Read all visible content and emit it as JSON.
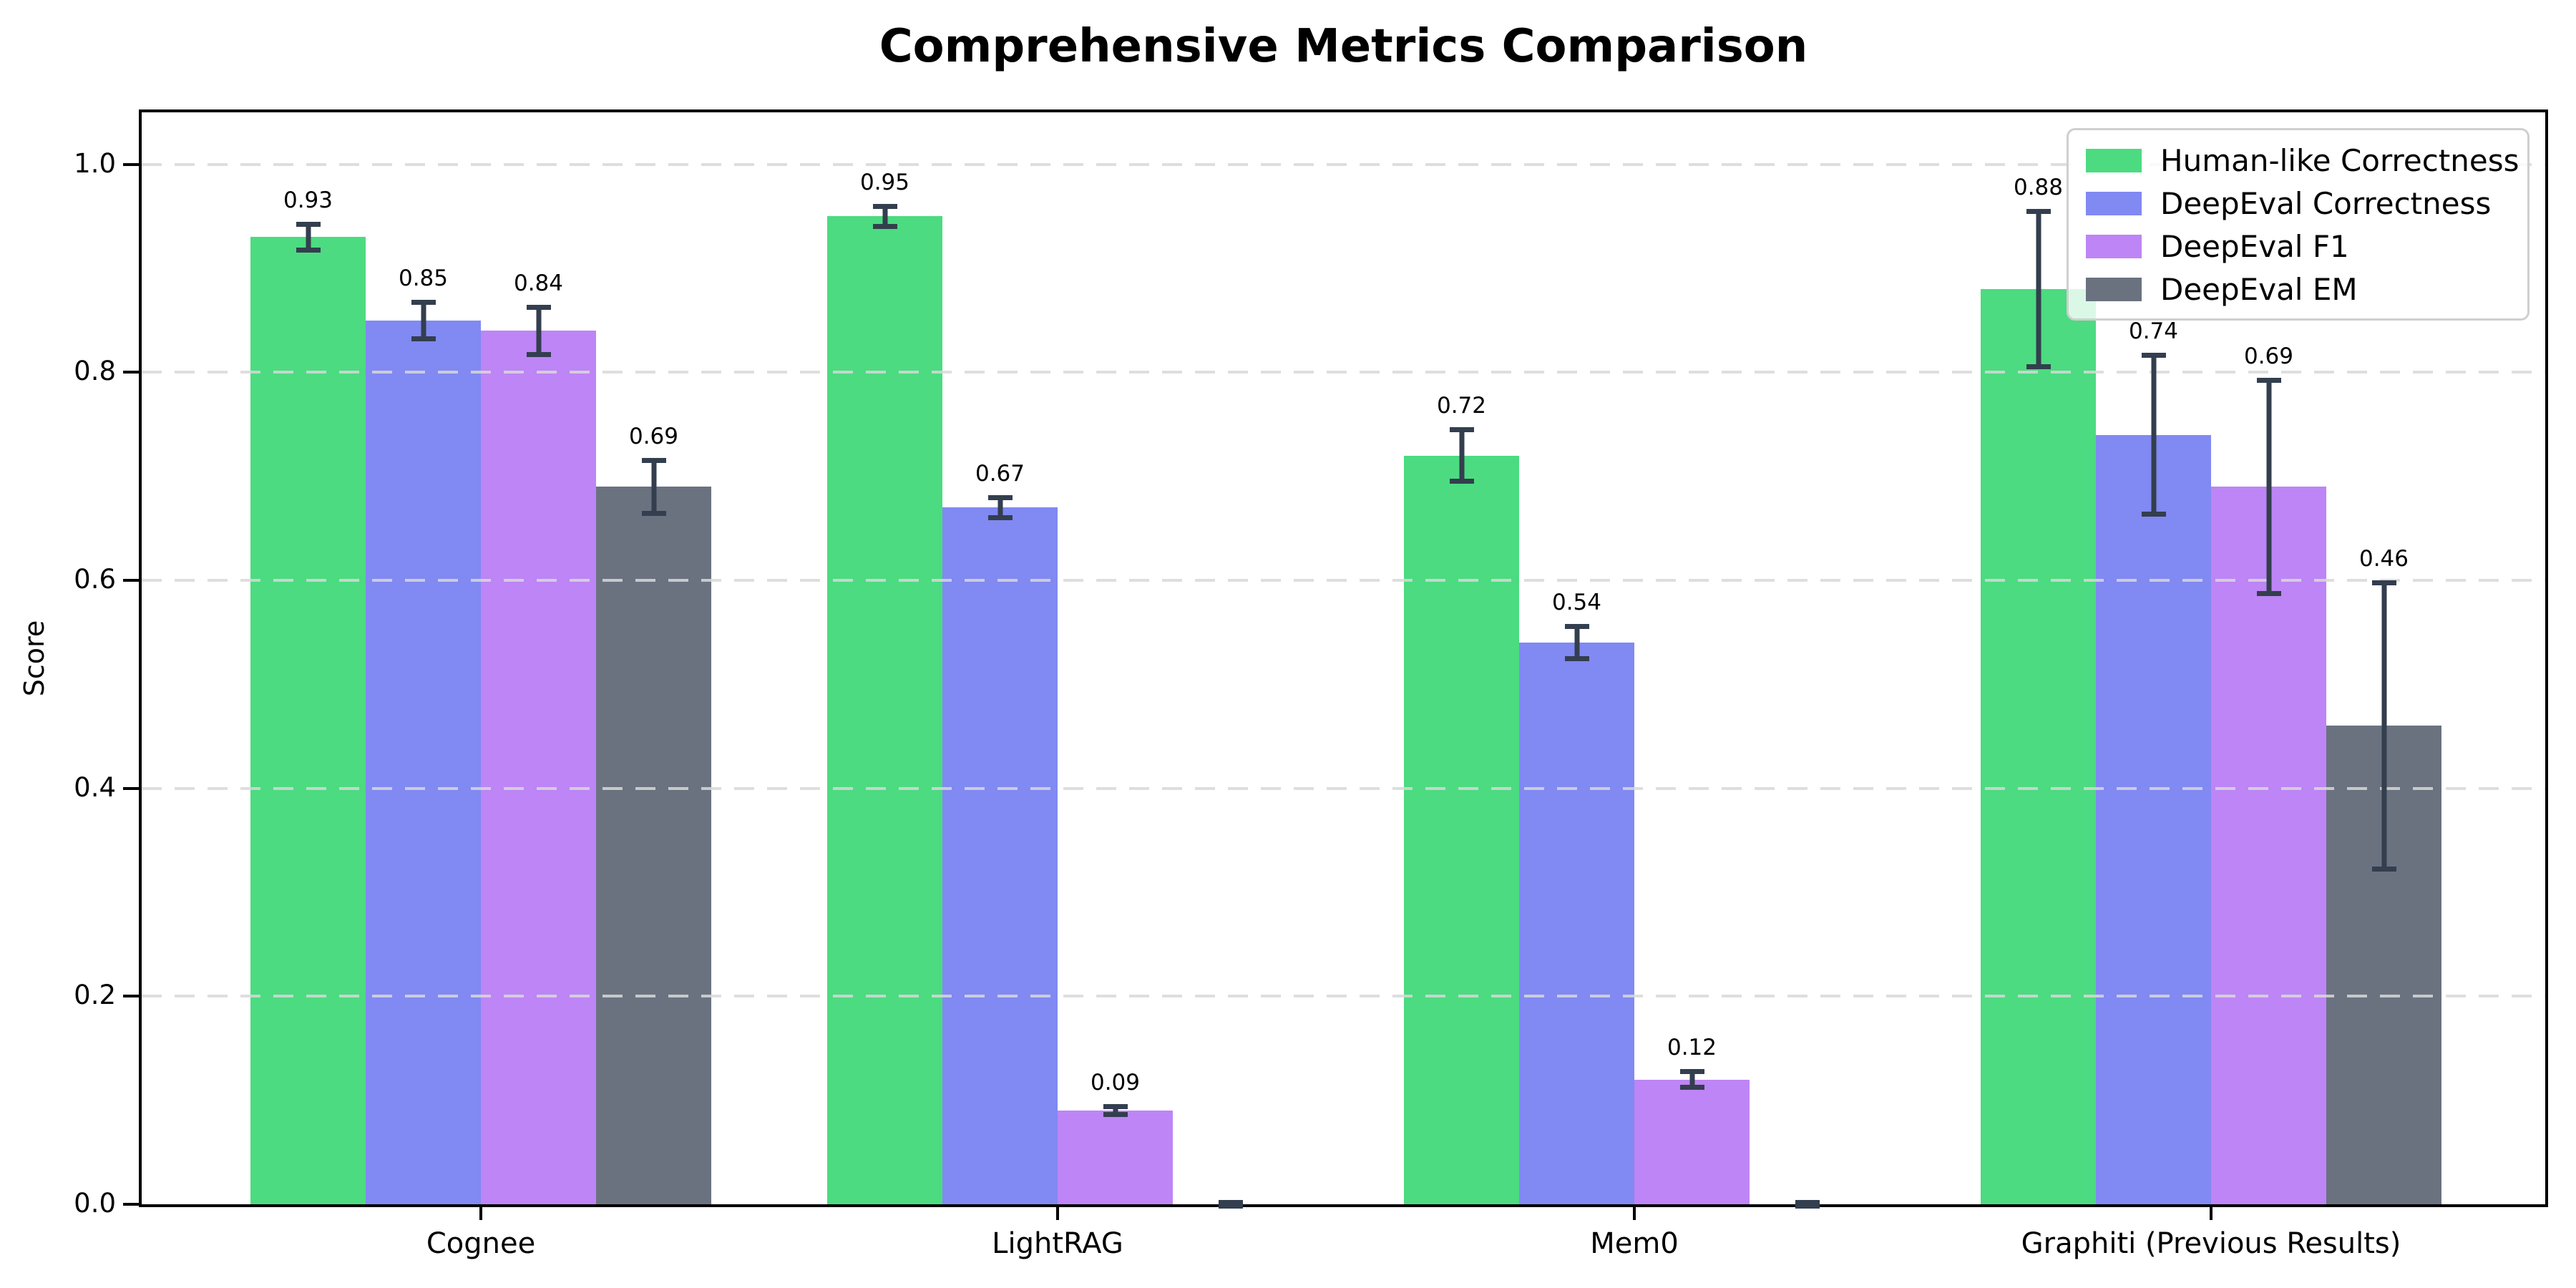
{
  "chart_data": {
    "type": "bar",
    "title": "Comprehensive Metrics Comparison",
    "ylabel": "Score",
    "xlabel": "",
    "categories": [
      "Cognee",
      "LightRAG",
      "Mem0",
      "Graphiti (Previous Results)"
    ],
    "series": [
      {
        "name": "Human-like Correctness",
        "color": "#4cdb80",
        "values": [
          0.93,
          0.95,
          0.72,
          0.88
        ],
        "errors": [
          0.015,
          0.012,
          0.027,
          0.077
        ],
        "labels": [
          "0.93",
          "0.95",
          "0.72",
          "0.88"
        ]
      },
      {
        "name": "DeepEval Correctness",
        "color": "#8189f2",
        "values": [
          0.85,
          0.67,
          0.54,
          0.74
        ],
        "errors": [
          0.02,
          0.012,
          0.018,
          0.079
        ],
        "labels": [
          "0.85",
          "0.67",
          "0.54",
          "0.74"
        ]
      },
      {
        "name": "DeepEval F1",
        "color": "#bd85f5",
        "values": [
          0.84,
          0.09,
          0.12,
          0.69
        ],
        "errors": [
          0.025,
          0.006,
          0.01,
          0.105
        ],
        "labels": [
          "0.84",
          "0.09",
          "0.12",
          "0.69"
        ]
      },
      {
        "name": "DeepEval EM",
        "color": "#6a7280",
        "values": [
          0.69,
          0.0,
          0.0,
          0.46
        ],
        "errors": [
          0.028,
          0.004,
          0.004,
          0.14
        ],
        "labels": [
          "0.69",
          "",
          "",
          "0.46"
        ]
      }
    ],
    "ylim": [
      0,
      1.05
    ],
    "yticks": [
      0.0,
      0.2,
      0.4,
      0.6,
      0.8,
      1.0
    ],
    "ytick_labels": [
      "0.0",
      "0.2",
      "0.4",
      "0.6",
      "0.8",
      "1.0"
    ],
    "grid": {
      "axis": "y",
      "style": "dashed",
      "color": "#d8d8d8",
      "drawn_over_bars": true
    },
    "error_bar_color": "#333e4e",
    "legend": {
      "position": "upper right",
      "entries": [
        "Human-like Correctness",
        "DeepEval Correctness",
        "DeepEval F1",
        "DeepEval EM"
      ]
    }
  }
}
